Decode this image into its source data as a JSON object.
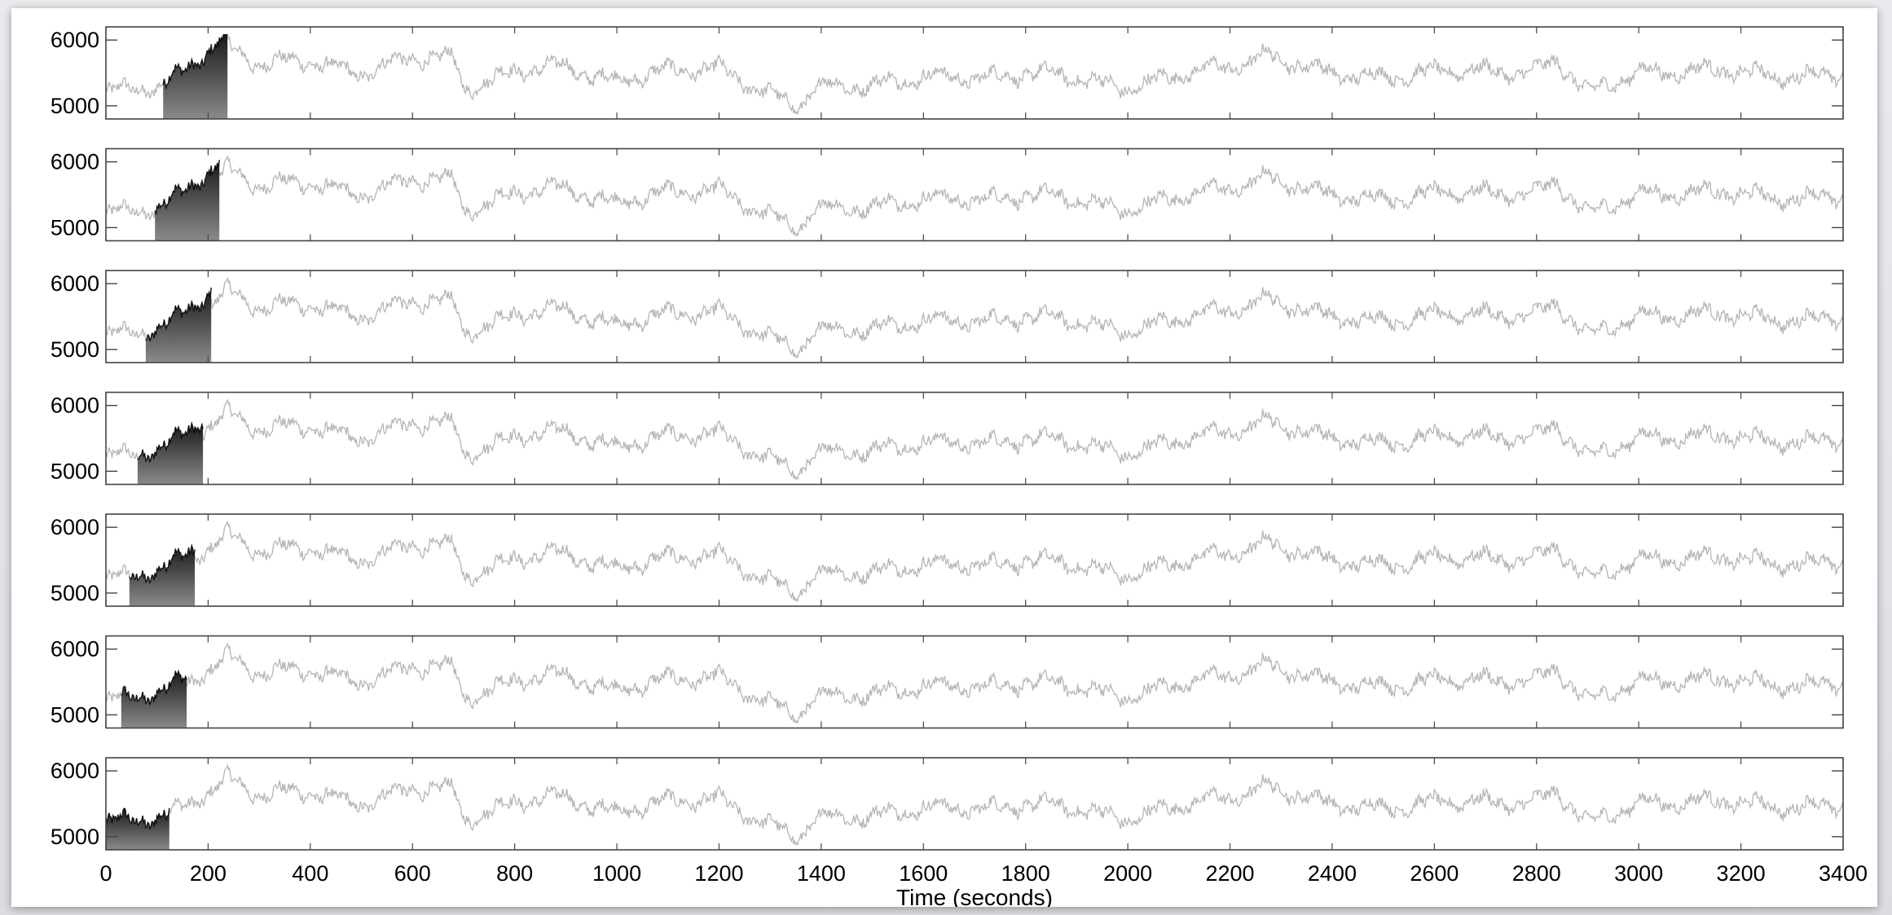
{
  "chart_data": {
    "type": "line",
    "xlabel": "Time (seconds)",
    "xlim": [
      0,
      3400
    ],
    "x_ticks": [
      "0",
      "200",
      "400",
      "600",
      "800",
      "1000",
      "1200",
      "1400",
      "1600",
      "1800",
      "2000",
      "2200",
      "2400",
      "2600",
      "2800",
      "3000",
      "3200",
      "3400"
    ],
    "ylim": [
      4800,
      6200
    ],
    "y_ticks": [
      "5000",
      "6000"
    ],
    "grid": false,
    "panel_count": 7,
    "series": [
      {
        "values_summary": "light-gray intensity trace repeated in every panel, fluctuating between about 4900 and 6050, mean about 5400",
        "key_points": [
          [
            0,
            5200
          ],
          [
            100,
            5250
          ],
          [
            200,
            5700
          ],
          [
            240,
            5900
          ],
          [
            300,
            5600
          ],
          [
            400,
            5700
          ],
          [
            500,
            5500
          ],
          [
            600,
            5700
          ],
          [
            680,
            5750
          ],
          [
            700,
            5300
          ],
          [
            800,
            5500
          ],
          [
            900,
            5600
          ],
          [
            1000,
            5400
          ],
          [
            1200,
            5600
          ],
          [
            1350,
            4950
          ],
          [
            1400,
            5300
          ],
          [
            1600,
            5400
          ],
          [
            1800,
            5500
          ],
          [
            2000,
            5300
          ],
          [
            2200,
            5600
          ],
          [
            2270,
            5800
          ],
          [
            2400,
            5450
          ],
          [
            2600,
            5500
          ],
          [
            2800,
            5550
          ],
          [
            2840,
            5700
          ],
          [
            2900,
            5150
          ],
          [
            3000,
            5550
          ],
          [
            3200,
            5500
          ],
          [
            3400,
            5450
          ]
        ]
      }
    ],
    "highlight_windows": [
      {
        "panel": 1,
        "start": 112,
        "end": 238
      },
      {
        "panel": 2,
        "start": 95,
        "end": 222
      },
      {
        "panel": 3,
        "start": 78,
        "end": 206
      },
      {
        "panel": 4,
        "start": 62,
        "end": 190
      },
      {
        "panel": 5,
        "start": 46,
        "end": 174
      },
      {
        "panel": 6,
        "start": 30,
        "end": 158
      },
      {
        "panel": 7,
        "start": 0,
        "end": 125
      }
    ],
    "colors": {
      "trace": "#b5b5b5",
      "highlight_trace": "#111111",
      "highlight_fill_top": "#1a1a1a",
      "highlight_fill_bottom": "#8a8a8a",
      "frame": "#444444"
    }
  }
}
